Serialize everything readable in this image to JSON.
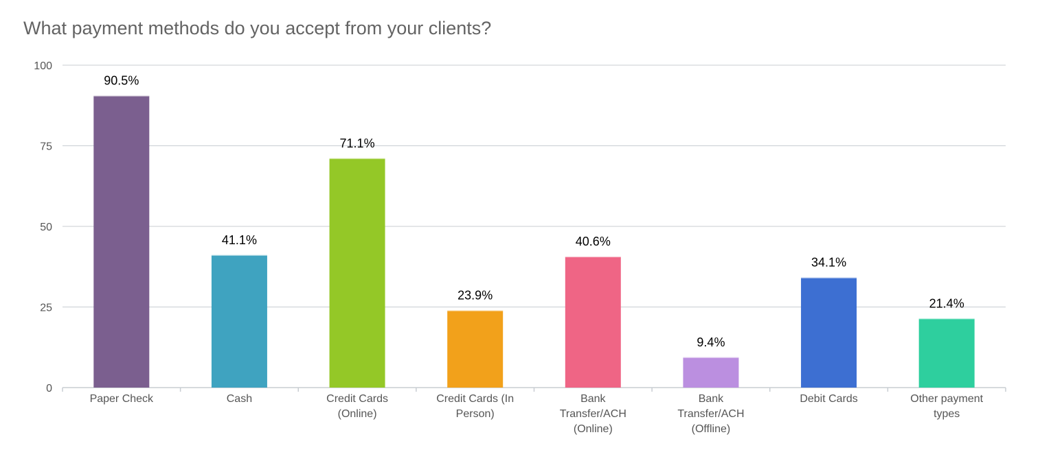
{
  "chart_data": {
    "type": "bar",
    "title": "What payment methods do you accept from your clients?",
    "xlabel": "",
    "ylabel": "",
    "ylim": [
      0,
      100
    ],
    "yticks": [
      0,
      25,
      50,
      75,
      100
    ],
    "grid": true,
    "legend": "none",
    "categories": [
      [
        "Paper Check"
      ],
      [
        "Cash"
      ],
      [
        "Credit Cards",
        "(Online)"
      ],
      [
        "Credit Cards (In",
        "Person)"
      ],
      [
        "Bank",
        "Transfer/ACH",
        "(Online)"
      ],
      [
        "Bank",
        "Transfer/ACH",
        "(Offline)"
      ],
      [
        "Debit Cards"
      ],
      [
        "Other payment",
        "types"
      ]
    ],
    "values": [
      90.5,
      41.1,
      71.1,
      23.9,
      40.6,
      9.4,
      34.1,
      21.4
    ],
    "value_labels": [
      "90.5%",
      "41.1%",
      "71.1%",
      "23.9%",
      "40.6%",
      "9.4%",
      "34.1%",
      "21.4%"
    ],
    "colors": [
      "#7b5f8f",
      "#3fa3c0",
      "#94c827",
      "#f2a11b",
      "#ef6585",
      "#bb8fe0",
      "#3d6fd2",
      "#2ecf9e"
    ],
    "grid_color": "#c8cdd2",
    "axis_color": "#c8cdd2"
  }
}
